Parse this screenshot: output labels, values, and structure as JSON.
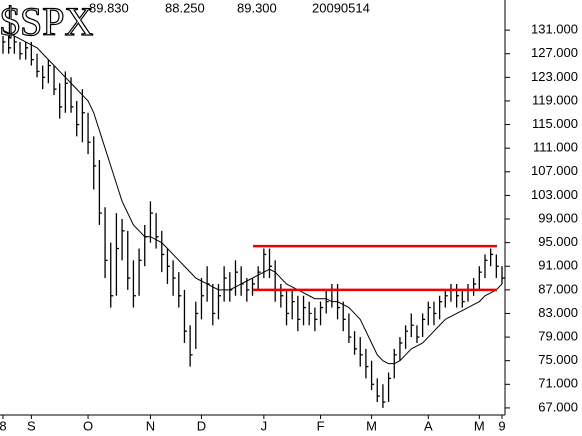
{
  "chart_data": {
    "type": "hlc",
    "title": "$SPX",
    "header": [
      "89.830",
      "88.250",
      "89.300",
      "20090514"
    ],
    "categories": [
      "8",
      null,
      null,
      null,
      null,
      "S",
      null,
      null,
      null,
      null,
      null,
      null,
      null,
      null,
      null,
      "O",
      null,
      null,
      null,
      null,
      null,
      null,
      null,
      null,
      null,
      null,
      "N",
      null,
      null,
      null,
      null,
      null,
      null,
      null,
      null,
      "D",
      null,
      null,
      null,
      null,
      null,
      null,
      null,
      null,
      null,
      null,
      "J",
      null,
      null,
      null,
      null,
      null,
      null,
      null,
      null,
      null,
      "F",
      null,
      null,
      null,
      null,
      null,
      null,
      null,
      null,
      "M",
      null,
      null,
      null,
      null,
      null,
      null,
      null,
      null,
      null,
      "A",
      null,
      null,
      null,
      null,
      null,
      null,
      null,
      null,
      "M",
      null,
      null,
      null,
      "9"
    ],
    "high": [
      130,
      130,
      130,
      129,
      129,
      129,
      127,
      125,
      126,
      125,
      122,
      124,
      123,
      119,
      121,
      117,
      113,
      109,
      101,
      95,
      100,
      99,
      97,
      92,
      94,
      98,
      102,
      100,
      97,
      94,
      92,
      90,
      87,
      81,
      85,
      89,
      91,
      88,
      88,
      91,
      90,
      92,
      91,
      89,
      89,
      91,
      94,
      94,
      92,
      88,
      87,
      87,
      86,
      86,
      85,
      84,
      85,
      87,
      88,
      88,
      85,
      83,
      80,
      79,
      77,
      75,
      72,
      71,
      73,
      77,
      79,
      81,
      83,
      81,
      83,
      85,
      85,
      86,
      87,
      88,
      88,
      87,
      88,
      89,
      91,
      93,
      94,
      93,
      91
    ],
    "low": [
      127,
      127,
      127,
      126,
      126,
      125,
      123,
      121,
      122,
      120,
      116,
      117,
      117,
      113,
      112,
      110,
      104,
      98,
      89,
      84,
      86,
      92,
      87,
      84,
      86,
      91,
      95,
      94,
      90,
      88,
      86,
      84,
      78,
      74,
      77,
      82,
      85,
      81,
      82,
      85,
      85,
      86,
      86,
      85,
      86,
      87,
      89,
      89,
      85,
      84,
      81,
      82,
      80,
      81,
      81,
      80,
      81,
      83,
      84,
      82,
      80,
      78,
      76,
      74,
      72,
      70,
      68,
      67,
      68,
      72,
      75,
      77,
      79,
      78,
      79,
      81,
      81,
      82,
      84,
      85,
      84,
      84,
      85,
      86,
      87,
      89,
      91,
      89,
      88
    ],
    "close": [
      129,
      128,
      129,
      127,
      128,
      126,
      124,
      123,
      125,
      121,
      118,
      122,
      118,
      115,
      117,
      112,
      108,
      100,
      92,
      86,
      94,
      97,
      89,
      86,
      92,
      96,
      100,
      96,
      93,
      91,
      89,
      86,
      80,
      76,
      83,
      86,
      88,
      83,
      86,
      89,
      87,
      90,
      88,
      87,
      88,
      90,
      93,
      91,
      87,
      86,
      83,
      85,
      82,
      84,
      83,
      82,
      84,
      85,
      87,
      84,
      82,
      79,
      77,
      76,
      74,
      71,
      69,
      68,
      72,
      76,
      78,
      80,
      81,
      79,
      82,
      84,
      83,
      85,
      86,
      87,
      86,
      85,
      87,
      88,
      90,
      92,
      93,
      91,
      89
    ],
    "moving_average": [
      131,
      130.5,
      130,
      129.5,
      129,
      128.5,
      128,
      127,
      126,
      125,
      124,
      123,
      122,
      121,
      120,
      119,
      117,
      114,
      111,
      108,
      105,
      102,
      100,
      98,
      97,
      96,
      96,
      95.5,
      95,
      94,
      93,
      92,
      91,
      90,
      89,
      88.5,
      88,
      87.5,
      87,
      87,
      87,
      87.5,
      88,
      88.5,
      89,
      89.5,
      90,
      90.5,
      90,
      89,
      88,
      87.5,
      87,
      86.5,
      86,
      85.5,
      85.5,
      85.5,
      85,
      85,
      84.5,
      84,
      83,
      82,
      80,
      78,
      76,
      75,
      74.5,
      74.5,
      75,
      76,
      77,
      77.5,
      78,
      79,
      80,
      81,
      82,
      82.5,
      83,
      83.5,
      84,
      84.5,
      85,
      86,
      86.5,
      87,
      88
    ],
    "color": "#000000",
    "hlines": [
      {
        "value": 94.4,
        "color": "#ee0000"
      },
      {
        "value": 87,
        "color": "#ee0000"
      }
    ],
    "ylim": [
      65.8,
      136.1
    ],
    "yticks": [
      {
        "value": 131,
        "label": "131.000"
      },
      {
        "value": 127,
        "label": "127.000"
      },
      {
        "value": 123,
        "label": "123.000"
      },
      {
        "value": 119,
        "label": "119.000"
      },
      {
        "value": 115,
        "label": "115.000"
      },
      {
        "value": 111,
        "label": "111.000"
      },
      {
        "value": 107,
        "label": "107.000"
      },
      {
        "value": 103,
        "label": "103.000"
      },
      {
        "value": 99,
        "label": "99.000"
      },
      {
        "value": 95,
        "label": "95.000"
      },
      {
        "value": 91,
        "label": "91.000"
      },
      {
        "value": 87,
        "label": "87.000"
      },
      {
        "value": 83,
        "label": "83.000"
      },
      {
        "value": 79,
        "label": "79.000"
      },
      {
        "value": 75,
        "label": "75.000"
      },
      {
        "value": 71,
        "label": "71.000"
      },
      {
        "value": 67,
        "label": "67.000"
      }
    ],
    "grid": false
  }
}
